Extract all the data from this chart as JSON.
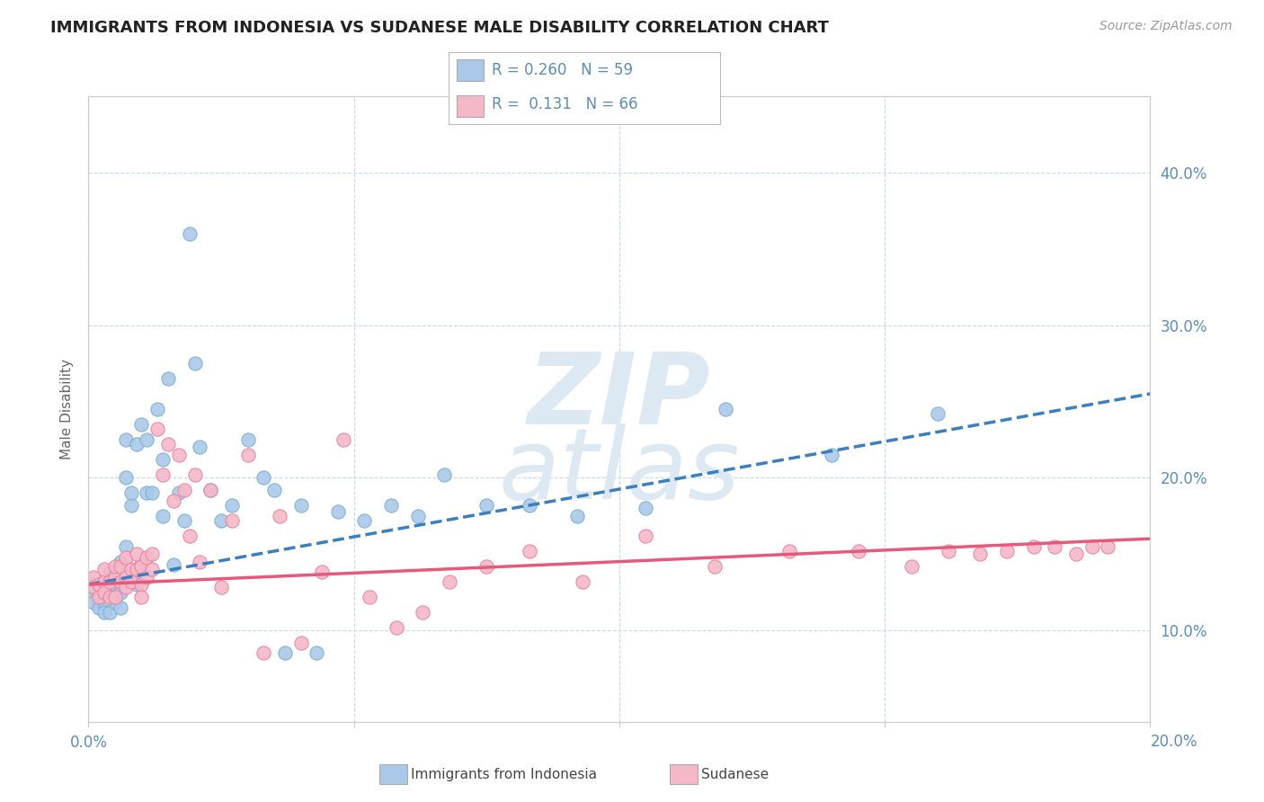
{
  "title": "IMMIGRANTS FROM INDONESIA VS SUDANESE MALE DISABILITY CORRELATION CHART",
  "source": "Source: ZipAtlas.com",
  "ylabel": "Male Disability",
  "xlim": [
    0.0,
    0.2
  ],
  "ylim": [
    0.04,
    0.45
  ],
  "xticks": [
    0.0,
    0.05,
    0.1,
    0.15,
    0.2
  ],
  "yticks": [
    0.1,
    0.2,
    0.3,
    0.4
  ],
  "series": [
    {
      "name": "Immigrants from Indonesia",
      "R": 0.26,
      "N": 59,
      "color": "#aac9e8",
      "edge_color": "#7aafd4",
      "trend_color": "#3a7fc1",
      "trend_style": "--",
      "scatter_x": [
        0.001,
        0.001,
        0.001,
        0.002,
        0.002,
        0.003,
        0.003,
        0.003,
        0.004,
        0.004,
        0.004,
        0.005,
        0.005,
        0.006,
        0.006,
        0.006,
        0.007,
        0.007,
        0.007,
        0.008,
        0.008,
        0.009,
        0.009,
        0.01,
        0.01,
        0.011,
        0.011,
        0.012,
        0.013,
        0.014,
        0.014,
        0.015,
        0.016,
        0.017,
        0.018,
        0.019,
        0.02,
        0.021,
        0.023,
        0.025,
        0.027,
        0.03,
        0.033,
        0.035,
        0.037,
        0.04,
        0.043,
        0.047,
        0.052,
        0.057,
        0.062,
        0.067,
        0.075,
        0.083,
        0.092,
        0.105,
        0.12,
        0.14,
        0.16
      ],
      "scatter_y": [
        0.13,
        0.125,
        0.118,
        0.125,
        0.115,
        0.13,
        0.118,
        0.112,
        0.125,
        0.138,
        0.112,
        0.13,
        0.118,
        0.125,
        0.145,
        0.115,
        0.2,
        0.225,
        0.155,
        0.182,
        0.19,
        0.13,
        0.222,
        0.235,
        0.143,
        0.19,
        0.225,
        0.19,
        0.245,
        0.175,
        0.212,
        0.265,
        0.143,
        0.19,
        0.172,
        0.36,
        0.275,
        0.22,
        0.192,
        0.172,
        0.182,
        0.225,
        0.2,
        0.192,
        0.085,
        0.182,
        0.085,
        0.178,
        0.172,
        0.182,
        0.175,
        0.202,
        0.182,
        0.182,
        0.175,
        0.18,
        0.245,
        0.215,
        0.242
      ],
      "trend_x": [
        0.0,
        0.2
      ],
      "trend_y": [
        0.13,
        0.255
      ]
    },
    {
      "name": "Sudanese",
      "R": 0.131,
      "N": 66,
      "color": "#f5b8c8",
      "edge_color": "#e8829e",
      "trend_color": "#e8587a",
      "trend_style": "-",
      "scatter_x": [
        0.001,
        0.001,
        0.002,
        0.002,
        0.003,
        0.003,
        0.003,
        0.004,
        0.004,
        0.005,
        0.005,
        0.005,
        0.006,
        0.006,
        0.007,
        0.007,
        0.007,
        0.008,
        0.008,
        0.009,
        0.009,
        0.01,
        0.01,
        0.01,
        0.011,
        0.011,
        0.012,
        0.012,
        0.013,
        0.014,
        0.015,
        0.016,
        0.017,
        0.018,
        0.019,
        0.02,
        0.021,
        0.023,
        0.025,
        0.027,
        0.03,
        0.033,
        0.036,
        0.04,
        0.044,
        0.048,
        0.053,
        0.058,
        0.063,
        0.068,
        0.075,
        0.083,
        0.093,
        0.105,
        0.118,
        0.132,
        0.145,
        0.155,
        0.162,
        0.168,
        0.173,
        0.178,
        0.182,
        0.186,
        0.189,
        0.192
      ],
      "scatter_y": [
        0.135,
        0.128,
        0.13,
        0.122,
        0.132,
        0.125,
        0.14,
        0.132,
        0.122,
        0.135,
        0.142,
        0.122,
        0.132,
        0.142,
        0.135,
        0.128,
        0.148,
        0.14,
        0.132,
        0.14,
        0.15,
        0.13,
        0.142,
        0.122,
        0.135,
        0.148,
        0.14,
        0.15,
        0.232,
        0.202,
        0.222,
        0.185,
        0.215,
        0.192,
        0.162,
        0.202,
        0.145,
        0.192,
        0.128,
        0.172,
        0.215,
        0.085,
        0.175,
        0.092,
        0.138,
        0.225,
        0.122,
        0.102,
        0.112,
        0.132,
        0.142,
        0.152,
        0.132,
        0.162,
        0.142,
        0.152,
        0.152,
        0.142,
        0.152,
        0.15,
        0.152,
        0.155,
        0.155,
        0.15,
        0.155,
        0.155
      ],
      "trend_x": [
        0.0,
        0.2
      ],
      "trend_y": [
        0.13,
        0.16
      ]
    }
  ],
  "background_color": "#ffffff",
  "grid_color": "#c8d8ea",
  "title_color": "#222222",
  "axis_color": "#5b8db8",
  "watermark_color": "#dce8f2"
}
